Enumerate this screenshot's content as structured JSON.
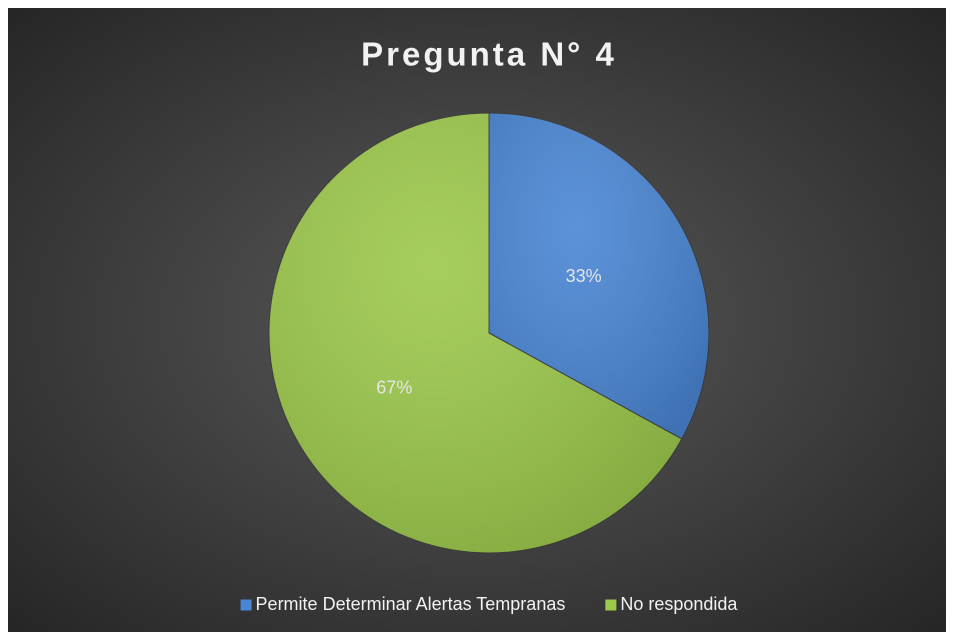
{
  "chart_data": {
    "type": "pie",
    "title": "Pregunta N° 4",
    "categories": [
      "Permite Determinar Alertas Tempranas",
      "No respondida"
    ],
    "values": [
      33,
      67
    ],
    "value_labels": [
      "33%",
      "67%"
    ],
    "colors": [
      "#4a86d4",
      "#9cc84b"
    ],
    "legend": "bottom"
  }
}
